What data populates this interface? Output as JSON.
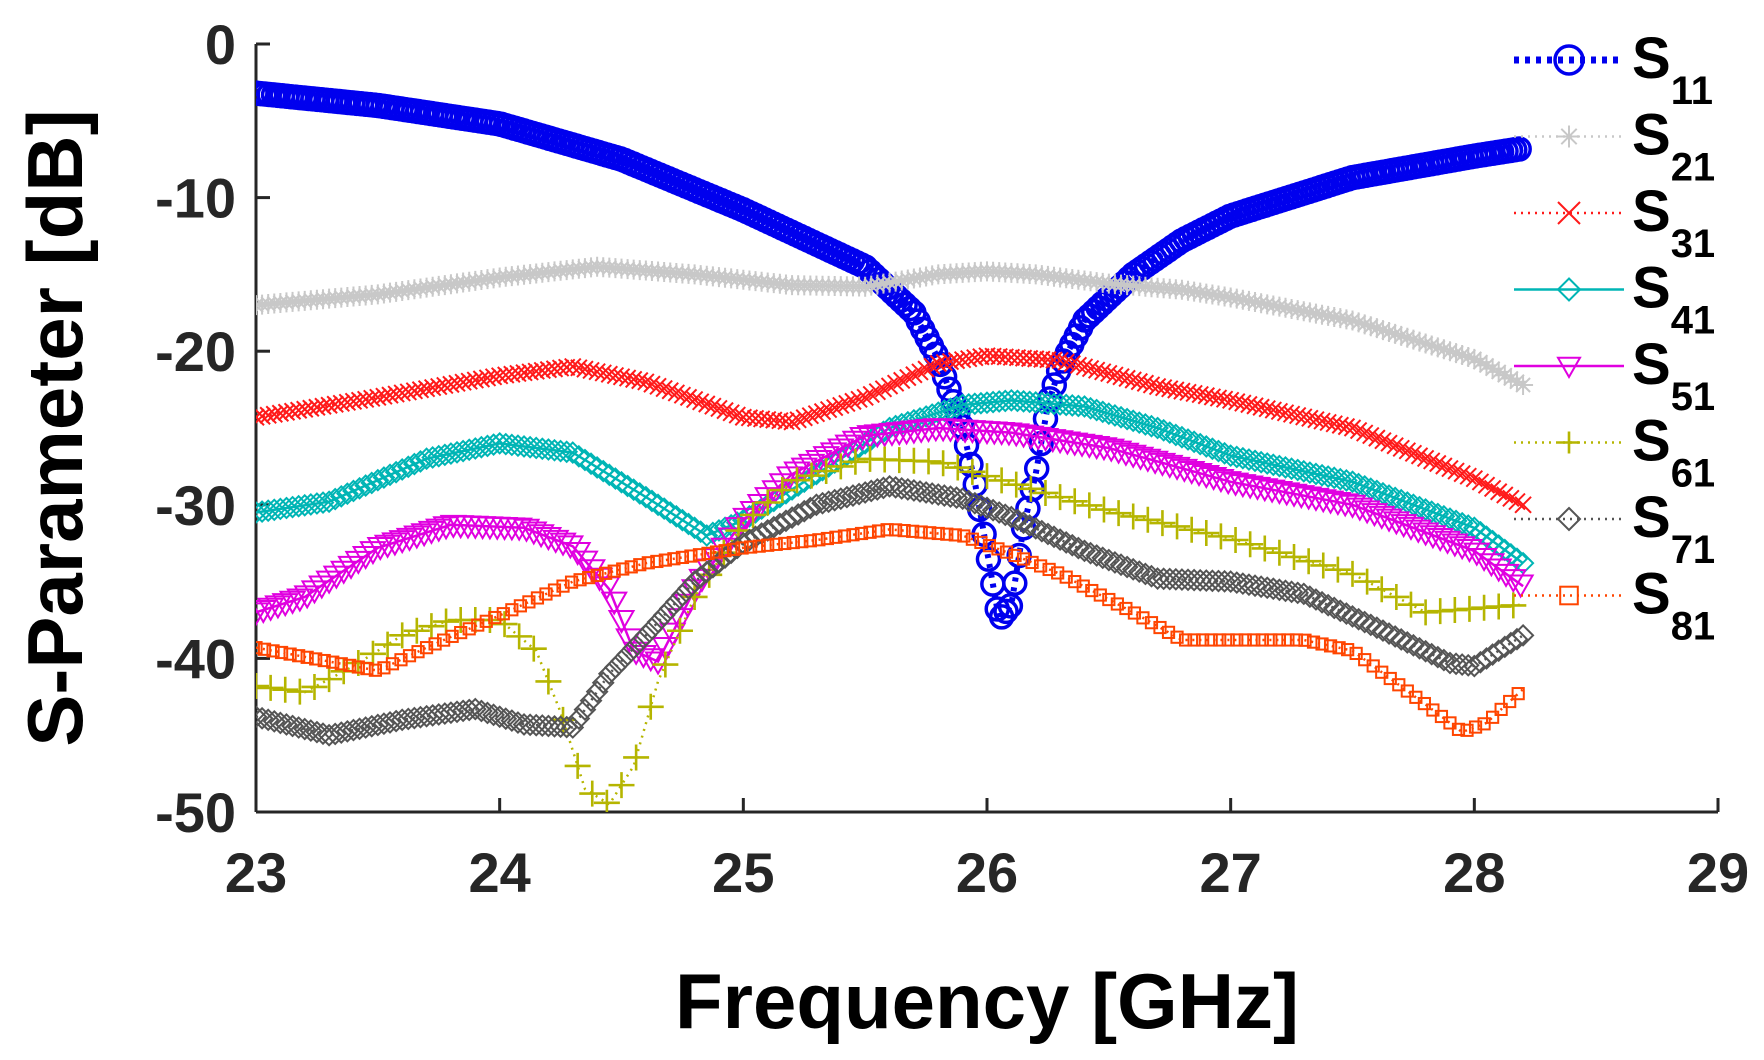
{
  "chart_data": {
    "type": "line",
    "title": "",
    "xlabel": "Frequency [GHz]",
    "ylabel": "S-Parameter [dB]",
    "xlim": [
      23,
      29
    ],
    "ylim": [
      -50,
      0
    ],
    "xticks": [
      "23",
      "24",
      "25",
      "26",
      "27",
      "28",
      "29"
    ],
    "yticks": [
      "0",
      "-10",
      "-20",
      "-30",
      "-40",
      "-50"
    ],
    "x_data_end": 28.2,
    "legend_position": "right",
    "series": [
      {
        "key": "s11",
        "name_main": "S",
        "name_sub": "11",
        "color": "#0000ee",
        "marker": "circle",
        "dash": "dotted-bold",
        "points": [
          [
            23,
            -3.2
          ],
          [
            23.5,
            -4.0
          ],
          [
            24,
            -5.2
          ],
          [
            24.5,
            -7.5
          ],
          [
            25,
            -10.8
          ],
          [
            25.5,
            -14.5
          ],
          [
            25.7,
            -17.5
          ],
          [
            25.8,
            -20.5
          ],
          [
            25.9,
            -25
          ],
          [
            25.95,
            -28.5
          ],
          [
            26,
            -33
          ],
          [
            26.05,
            -37.5
          ],
          [
            26.1,
            -36.5
          ],
          [
            26.15,
            -31.5
          ],
          [
            26.2,
            -28
          ],
          [
            26.25,
            -23.5
          ],
          [
            26.3,
            -21
          ],
          [
            26.4,
            -18
          ],
          [
            26.6,
            -15
          ],
          [
            26.8,
            -12.8
          ],
          [
            27,
            -11.2
          ],
          [
            27.5,
            -8.7
          ],
          [
            28,
            -7.3
          ],
          [
            28.2,
            -6.8
          ]
        ]
      },
      {
        "key": "s21",
        "name_main": "S",
        "name_sub": "21",
        "color": "#c8c8c8",
        "marker": "star",
        "dash": "dotted",
        "points": [
          [
            23,
            -17
          ],
          [
            23.5,
            -16.3
          ],
          [
            24,
            -15.2
          ],
          [
            24.4,
            -14.5
          ],
          [
            24.8,
            -15
          ],
          [
            25.2,
            -15.7
          ],
          [
            25.5,
            -15.8
          ],
          [
            25.8,
            -15
          ],
          [
            26,
            -14.8
          ],
          [
            26.2,
            -15
          ],
          [
            26.5,
            -15.6
          ],
          [
            26.8,
            -16
          ],
          [
            27,
            -16.5
          ],
          [
            27.5,
            -18
          ],
          [
            28,
            -20.5
          ],
          [
            28.2,
            -22.2
          ]
        ]
      },
      {
        "key": "s31",
        "name_main": "S",
        "name_sub": "31",
        "color": "#ff1a1a",
        "marker": "x",
        "dash": "dotted",
        "points": [
          [
            23,
            -24.3
          ],
          [
            23.5,
            -23
          ],
          [
            24,
            -21.6
          ],
          [
            24.3,
            -21
          ],
          [
            24.6,
            -22
          ],
          [
            25,
            -24.3
          ],
          [
            25.2,
            -24.6
          ],
          [
            25.5,
            -23
          ],
          [
            25.8,
            -20.8
          ],
          [
            26,
            -20.3
          ],
          [
            26.3,
            -20.6
          ],
          [
            26.7,
            -22.3
          ],
          [
            27,
            -23.2
          ],
          [
            27.5,
            -25
          ],
          [
            28,
            -28.3
          ],
          [
            28.2,
            -30
          ]
        ]
      },
      {
        "key": "s41",
        "name_main": "S",
        "name_sub": "41",
        "color": "#00b5b5",
        "marker": "diamond",
        "dash": "solid",
        "points": [
          [
            23,
            -30.5
          ],
          [
            23.3,
            -29.8
          ],
          [
            23.7,
            -27
          ],
          [
            24,
            -26
          ],
          [
            24.3,
            -26.6
          ],
          [
            24.6,
            -29.5
          ],
          [
            24.85,
            -32
          ],
          [
            25,
            -31
          ],
          [
            25.3,
            -28
          ],
          [
            25.6,
            -25
          ],
          [
            25.9,
            -23.5
          ],
          [
            26.1,
            -23.2
          ],
          [
            26.4,
            -23.6
          ],
          [
            26.7,
            -25
          ],
          [
            27,
            -26.8
          ],
          [
            27.5,
            -28.5
          ],
          [
            28,
            -31.5
          ],
          [
            28.2,
            -33.8
          ]
        ]
      },
      {
        "key": "s51",
        "name_main": "S",
        "name_sub": "51",
        "color": "#e000e0",
        "marker": "triangle-down",
        "dash": "solid",
        "points": [
          [
            23,
            -37
          ],
          [
            23.2,
            -36
          ],
          [
            23.5,
            -32.8
          ],
          [
            23.8,
            -31.3
          ],
          [
            24.1,
            -31.5
          ],
          [
            24.3,
            -32.7
          ],
          [
            24.45,
            -35.5
          ],
          [
            24.55,
            -39.5
          ],
          [
            24.65,
            -40.2
          ],
          [
            24.8,
            -35.5
          ],
          [
            25,
            -31
          ],
          [
            25.2,
            -28
          ],
          [
            25.5,
            -25.5
          ],
          [
            25.8,
            -25
          ],
          [
            26.1,
            -25.3
          ],
          [
            26.5,
            -26.3
          ],
          [
            27,
            -28.5
          ],
          [
            27.5,
            -30
          ],
          [
            28,
            -33
          ],
          [
            28.2,
            -35.3
          ]
        ]
      },
      {
        "key": "s61",
        "name_main": "S",
        "name_sub": "61",
        "color": "#b5b500",
        "marker": "plus",
        "dash": "dotted",
        "points": [
          [
            23,
            -41.8
          ],
          [
            23.2,
            -42.2
          ],
          [
            23.4,
            -40.5
          ],
          [
            23.6,
            -38.5
          ],
          [
            23.8,
            -37.5
          ],
          [
            24,
            -37.5
          ],
          [
            24.15,
            -39.5
          ],
          [
            24.25,
            -43.5
          ],
          [
            24.35,
            -48.5
          ],
          [
            24.45,
            -49.5
          ],
          [
            24.55,
            -47
          ],
          [
            24.65,
            -41.5
          ],
          [
            24.8,
            -36
          ],
          [
            25,
            -31.2
          ],
          [
            25.2,
            -28.5
          ],
          [
            25.5,
            -27
          ],
          [
            25.8,
            -27.2
          ],
          [
            26.1,
            -28.6
          ],
          [
            26.5,
            -30.4
          ],
          [
            27,
            -32.2
          ],
          [
            27.5,
            -34.5
          ],
          [
            27.8,
            -37
          ],
          [
            28.2,
            -36.5
          ]
        ]
      },
      {
        "key": "s71",
        "name_main": "S",
        "name_sub": "71",
        "color": "#555555",
        "marker": "diamond",
        "dash": "dotted",
        "points": [
          [
            23,
            -43.8
          ],
          [
            23.3,
            -45
          ],
          [
            23.6,
            -44
          ],
          [
            23.9,
            -43.3
          ],
          [
            24.1,
            -44.3
          ],
          [
            24.3,
            -44.5
          ],
          [
            24.45,
            -41
          ],
          [
            24.6,
            -38.5
          ],
          [
            24.8,
            -35
          ],
          [
            25,
            -32.5
          ],
          [
            25.3,
            -30
          ],
          [
            25.6,
            -28.8
          ],
          [
            25.9,
            -29.6
          ],
          [
            26.1,
            -30.8
          ],
          [
            26.4,
            -33
          ],
          [
            26.7,
            -34.8
          ],
          [
            27,
            -35
          ],
          [
            27.3,
            -35.8
          ],
          [
            27.6,
            -38
          ],
          [
            27.9,
            -40.3
          ],
          [
            28,
            -40.5
          ],
          [
            28.2,
            -38.5
          ]
        ]
      },
      {
        "key": "s81",
        "name_main": "S",
        "name_sub": "81",
        "color": "#ff4500",
        "marker": "square",
        "dash": "dotted",
        "points": [
          [
            23,
            -39.3
          ],
          [
            23.3,
            -40.2
          ],
          [
            23.5,
            -40.8
          ],
          [
            23.7,
            -39.3
          ],
          [
            24,
            -37.2
          ],
          [
            24.3,
            -35
          ],
          [
            24.6,
            -33.8
          ],
          [
            25,
            -32.8
          ],
          [
            25.3,
            -32.3
          ],
          [
            25.6,
            -31.6
          ],
          [
            25.9,
            -32
          ],
          [
            26.1,
            -33.2
          ],
          [
            26.3,
            -34.5
          ],
          [
            26.6,
            -37
          ],
          [
            26.8,
            -38.8
          ],
          [
            27,
            -38.8
          ],
          [
            27.3,
            -38.8
          ],
          [
            27.5,
            -39.5
          ],
          [
            27.8,
            -43
          ],
          [
            27.95,
            -44.8
          ],
          [
            28.05,
            -44.2
          ],
          [
            28.2,
            -42
          ]
        ]
      }
    ]
  }
}
